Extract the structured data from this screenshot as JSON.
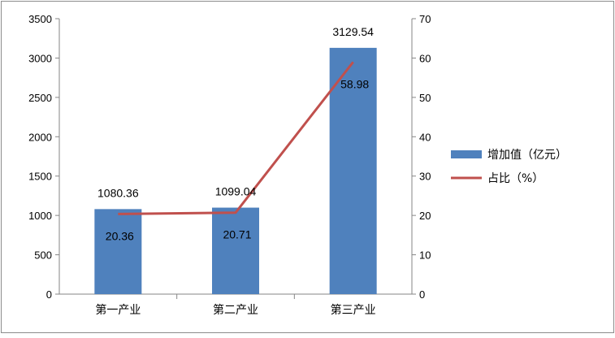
{
  "chart_data": {
    "type": "bar",
    "categories": [
      "第一产业",
      "第二产业",
      "第三产业"
    ],
    "series": [
      {
        "name": "增加值（亿元）",
        "type": "bar",
        "axis": "left",
        "color": "#4f81bd",
        "values": [
          1080.36,
          1099.04,
          3129.54
        ],
        "labels": [
          "1080.36",
          "1099.04",
          "3129.54"
        ]
      },
      {
        "name": "占比（%）",
        "type": "line",
        "axis": "right",
        "color": "#c0504d",
        "values": [
          20.36,
          20.71,
          58.98
        ],
        "labels": [
          "20.36",
          "20.71",
          "58.98"
        ]
      }
    ],
    "y_left": {
      "min": 0,
      "max": 3500,
      "ticks": [
        "0",
        "500",
        "1000",
        "1500",
        "2000",
        "2500",
        "3000",
        "3500"
      ]
    },
    "y_right": {
      "min": 0,
      "max": 70,
      "ticks": [
        "0",
        "10",
        "20",
        "30",
        "40",
        "50",
        "60",
        "70"
      ]
    },
    "title": "",
    "xlabel": "",
    "ylabel": "",
    "grid": false,
    "legend": "right"
  }
}
